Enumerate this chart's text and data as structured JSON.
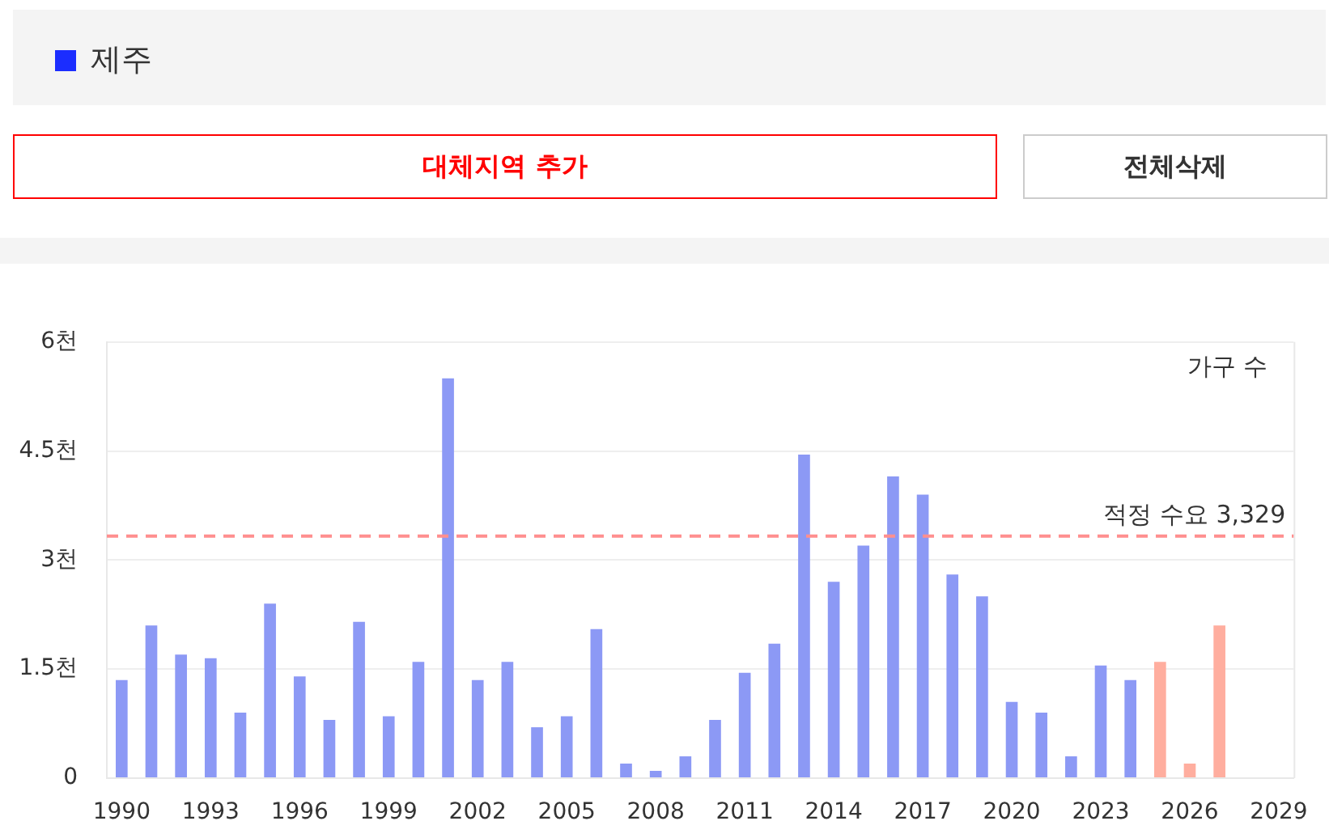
{
  "chart_data": {
    "type": "bar",
    "title": "제주",
    "categories": [
      "1990",
      null,
      null,
      "1993",
      null,
      null,
      "1996",
      null,
      null,
      "1999",
      null,
      null,
      "2002",
      null,
      null,
      "2005",
      null,
      null,
      "2008",
      null,
      null,
      "2011",
      null,
      null,
      "2014",
      null,
      null,
      "2017",
      null,
      null,
      "2020",
      null,
      null,
      "2023",
      null,
      null,
      "2026",
      null,
      null,
      "2029"
    ],
    "values": [
      1.35,
      2.1,
      1.7,
      1.65,
      0.9,
      2.4,
      1.4,
      0.8,
      2.15,
      0.85,
      1.6,
      5.5,
      1.35,
      1.6,
      0.7,
      0.85,
      2.05,
      0.2,
      0.1,
      0.3,
      0.8,
      1.45,
      1.85,
      4.45,
      2.7,
      3.2,
      4.15,
      3.9,
      2.8,
      2.5,
      1.05,
      0.9,
      0.3,
      1.55,
      1.35,
      1.6,
      0.2,
      2.1,
      null,
      null
    ],
    "colors": [
      "#8c99f5",
      "#8c99f5",
      "#8c99f5",
      "#8c99f5",
      "#8c99f5",
      "#8c99f5",
      "#8c99f5",
      "#8c99f5",
      "#8c99f5",
      "#8c99f5",
      "#8c99f5",
      "#8c99f5",
      "#8c99f5",
      "#8c99f5",
      "#8c99f5",
      "#8c99f5",
      "#8c99f5",
      "#8c99f5",
      "#8c99f5",
      "#8c99f5",
      "#8c99f5",
      "#8c99f5",
      "#8c99f5",
      "#8c99f5",
      "#8c99f5",
      "#8c99f5",
      "#8c99f5",
      "#8c99f5",
      "#8c99f5",
      "#8c99f5",
      "#8c99f5",
      "#8c99f5",
      "#8c99f5",
      "#8c99f5",
      "#8c99f5",
      "#ffae9f",
      "#ffae9f",
      "#ffae9f",
      "#ffae9f",
      "#ffae9f"
    ],
    "ylim": [
      0,
      6
    ],
    "yticks": [
      0,
      {
        "value": 1.5,
        "label": "1.5천"
      },
      {
        "value": 3,
        "label": "3천"
      },
      {
        "value": 4.5,
        "label": "4.5천"
      },
      {
        "value": 6,
        "label": "6천"
      }
    ],
    "grid": "y",
    "ref_lines": [
      {
        "axis": "y",
        "value": 3.329,
        "label": "적정 수요 3,329",
        "color": "#ff8f8f",
        "line_style": "dashed"
      }
    ],
    "annotations": [
      "가구 수",
      "대체지역 추가",
      "전체삭제"
    ]
  }
}
